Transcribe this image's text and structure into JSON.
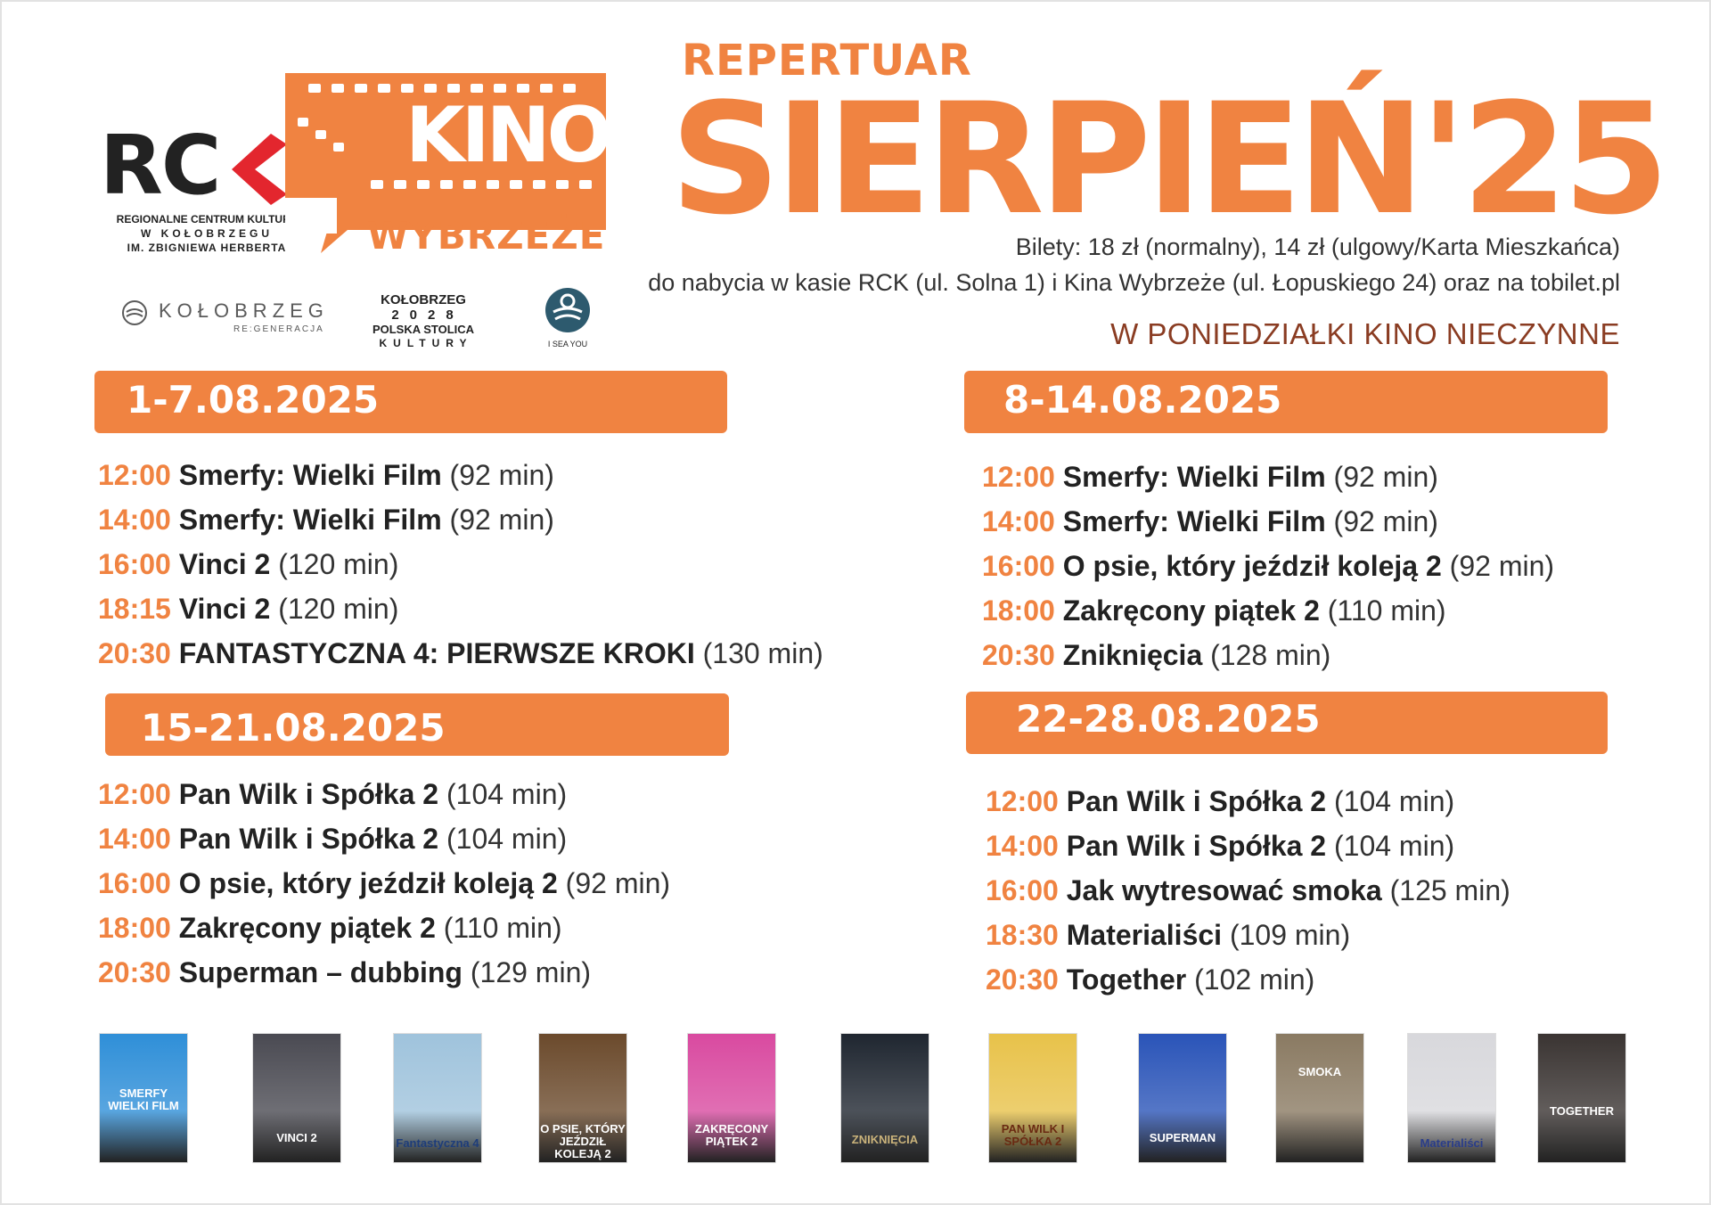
{
  "logos": {
    "rck": {
      "letters": "RC",
      "subtitle_lines": [
        "REGIONALNE CENTRUM KULTURY",
        "W KOŁOBRZEGU",
        "IM. ZBIGNIEWA HERBERTA"
      ]
    },
    "kino": {
      "word": "KINO",
      "name": "WYBRZEŻE",
      "color": "#f08341"
    },
    "partners": {
      "kolobrzeg": {
        "name": "KOŁOBRZEG",
        "sub": "RE:GENERACJA"
      },
      "stolica": {
        "lines": [
          "KOŁOBRZEG",
          "2028",
          "POLSKA STOLICA",
          "KULTURY"
        ]
      },
      "iseayou": {
        "label": "I SEA YOU"
      }
    }
  },
  "header": {
    "kicker": "REPERTUAR",
    "title": "SIERPIEŃ'25",
    "prices": "Bilety: 18 zł (normalny), 14 zł (ulgowy/Karta Mieszkańca)",
    "sales": "do nabycia w kasie RCK (ul. Solna 1) i Kina Wybrzeże (ul. Łopuskiego 24) oraz na tobilet.pl",
    "closed": "W PONIEDZIAŁKI KINO NIECZYNNE",
    "accent_color": "#f08341"
  },
  "weeks": [
    {
      "label": "1-7.08.2025",
      "shows": [
        {
          "time": "12:00",
          "title": "Smerfy: Wielki Film",
          "duration": "(92 min)"
        },
        {
          "time": "14:00",
          "title": "Smerfy: Wielki Film",
          "duration": "(92 min)"
        },
        {
          "time": "16:00",
          "title": "Vinci 2",
          "duration": "(120 min)"
        },
        {
          "time": "18:15",
          "title": "Vinci 2",
          "duration": "(120 min)"
        },
        {
          "time": "20:30",
          "title": "FANTASTYCZNA 4: PIERWSZE KROKI",
          "duration": "(130 min)"
        }
      ]
    },
    {
      "label": "8-14.08.2025",
      "shows": [
        {
          "time": "12:00",
          "title": "Smerfy: Wielki Film",
          "duration": "(92 min)"
        },
        {
          "time": "14:00",
          "title": "Smerfy: Wielki Film",
          "duration": "(92 min)"
        },
        {
          "time": "16:00",
          "title": "O psie, który jeździł koleją 2",
          "duration": "(92 min)"
        },
        {
          "time": "18:00",
          "title": "Zakręcony piątek 2",
          "duration": "(110 min)"
        },
        {
          "time": "20:30",
          "title": "Zniknięcia",
          "duration": "(128 min)"
        }
      ]
    },
    {
      "label": "15-21.08.2025",
      "shows": [
        {
          "time": "12:00",
          "title": "Pan Wilk i Spółka 2",
          "duration": "(104 min)"
        },
        {
          "time": "14:00",
          "title": "Pan Wilk i Spółka 2",
          "duration": "(104 min)"
        },
        {
          "time": "16:00",
          "title": "O psie, który jeździł koleją 2",
          "duration": "(92 min)"
        },
        {
          "time": "18:00",
          "title": "Zakręcony piątek 2",
          "duration": "(110 min)"
        },
        {
          "time": "20:30",
          "title": "Superman – dubbing",
          "duration": "(129 min)"
        }
      ]
    },
    {
      "label": "22-28.08.2025",
      "shows": [
        {
          "time": "12:00",
          "title": "Pan Wilk i Spółka 2",
          "duration": "(104 min)"
        },
        {
          "time": "14:00",
          "title": "Pan Wilk i Spółka 2",
          "duration": "(104 min)"
        },
        {
          "time": "16:00",
          "title": "Jak wytresować smoka",
          "duration": "(125 min)"
        },
        {
          "time": "18:30",
          "title": "Materialiści",
          "duration": "(109 min)"
        },
        {
          "time": "20:30",
          "title": "Together",
          "duration": "(102 min)"
        }
      ]
    }
  ],
  "posters": [
    {
      "label": "SMERFY WIELKI FILM",
      "color": "#2f8fd8"
    },
    {
      "label": "VINCI 2",
      "color": "#4a4a52"
    },
    {
      "label": "Fantastyczna 4",
      "color": "#9fc3dc"
    },
    {
      "label": "O PSIE, KTÓRY JEŹDZIŁ KOLEJĄ 2",
      "color": "#6b4a2c"
    },
    {
      "label": "ZAKRĘCONY PIĄTEK 2",
      "color": "#d94aa0"
    },
    {
      "label": "ZNIKNIĘCIA",
      "color": "#1f2630"
    },
    {
      "label": "PAN WILK I SPÓŁKA 2",
      "color": "#e8c24a"
    },
    {
      "label": "SUPERMAN",
      "color": "#2a54b8"
    },
    {
      "label": "SMOKA",
      "color": "#8a7a62"
    },
    {
      "label": "Materialiści",
      "color": "#d8d8dc"
    },
    {
      "label": "TOGETHER",
      "color": "#3a3432"
    }
  ]
}
